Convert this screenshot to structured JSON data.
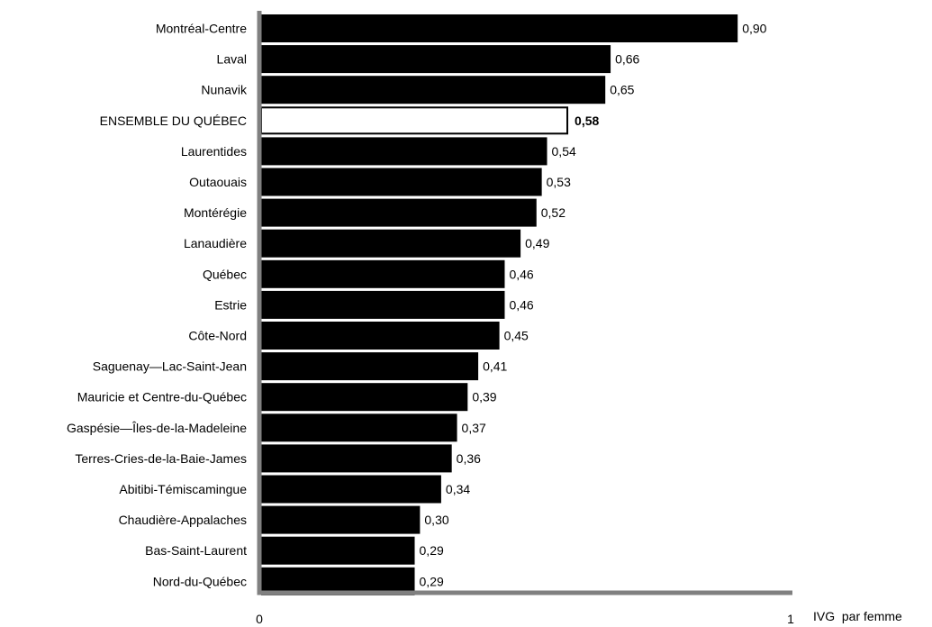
{
  "chart_data": {
    "type": "bar",
    "orientation": "horizontal",
    "categories": [
      "Montréal-Centre",
      "Laval",
      "Nunavik",
      "ENSEMBLE DU QUÉBEC",
      "Laurentides",
      "Outaouais",
      "Montérégie",
      "Lanaudière",
      "Québec",
      "Estrie",
      "Côte-Nord",
      "Saguenay—Lac-Saint-Jean",
      "Mauricie et Centre-du-Québec",
      "Gaspésie—Îles-de-la-Madeleine",
      "Terres-Cries-de-la-Baie-James",
      "Abitibi-Témiscamingue",
      "Chaudière-Appalaches",
      "Bas-Saint-Laurent",
      "Nord-du-Québec"
    ],
    "values": [
      0.9,
      0.66,
      0.65,
      0.58,
      0.54,
      0.53,
      0.52,
      0.49,
      0.46,
      0.46,
      0.45,
      0.41,
      0.39,
      0.37,
      0.36,
      0.34,
      0.3,
      0.29,
      0.29
    ],
    "value_labels": [
      "0,90",
      "0,66",
      "0,65",
      "0,58",
      "0,54",
      "0,53",
      "0,52",
      "0,49",
      "0,46",
      "0,46",
      "0,45",
      "0,41",
      "0,39",
      "0,37",
      "0,36",
      "0,34",
      "0,30",
      "0,29",
      "0,29"
    ],
    "highlight_category": "ENSEMBLE DU QUÉBEC",
    "bar_color": "#000000",
    "highlight_fill": "#ffffff",
    "axis_color": "#808080",
    "xlim": [
      0,
      1
    ],
    "x_ticks": [
      "0",
      "1"
    ],
    "xlabel": "IVG  par femme",
    "ylabel": "",
    "title": "",
    "grid": false,
    "legend": "none"
  }
}
